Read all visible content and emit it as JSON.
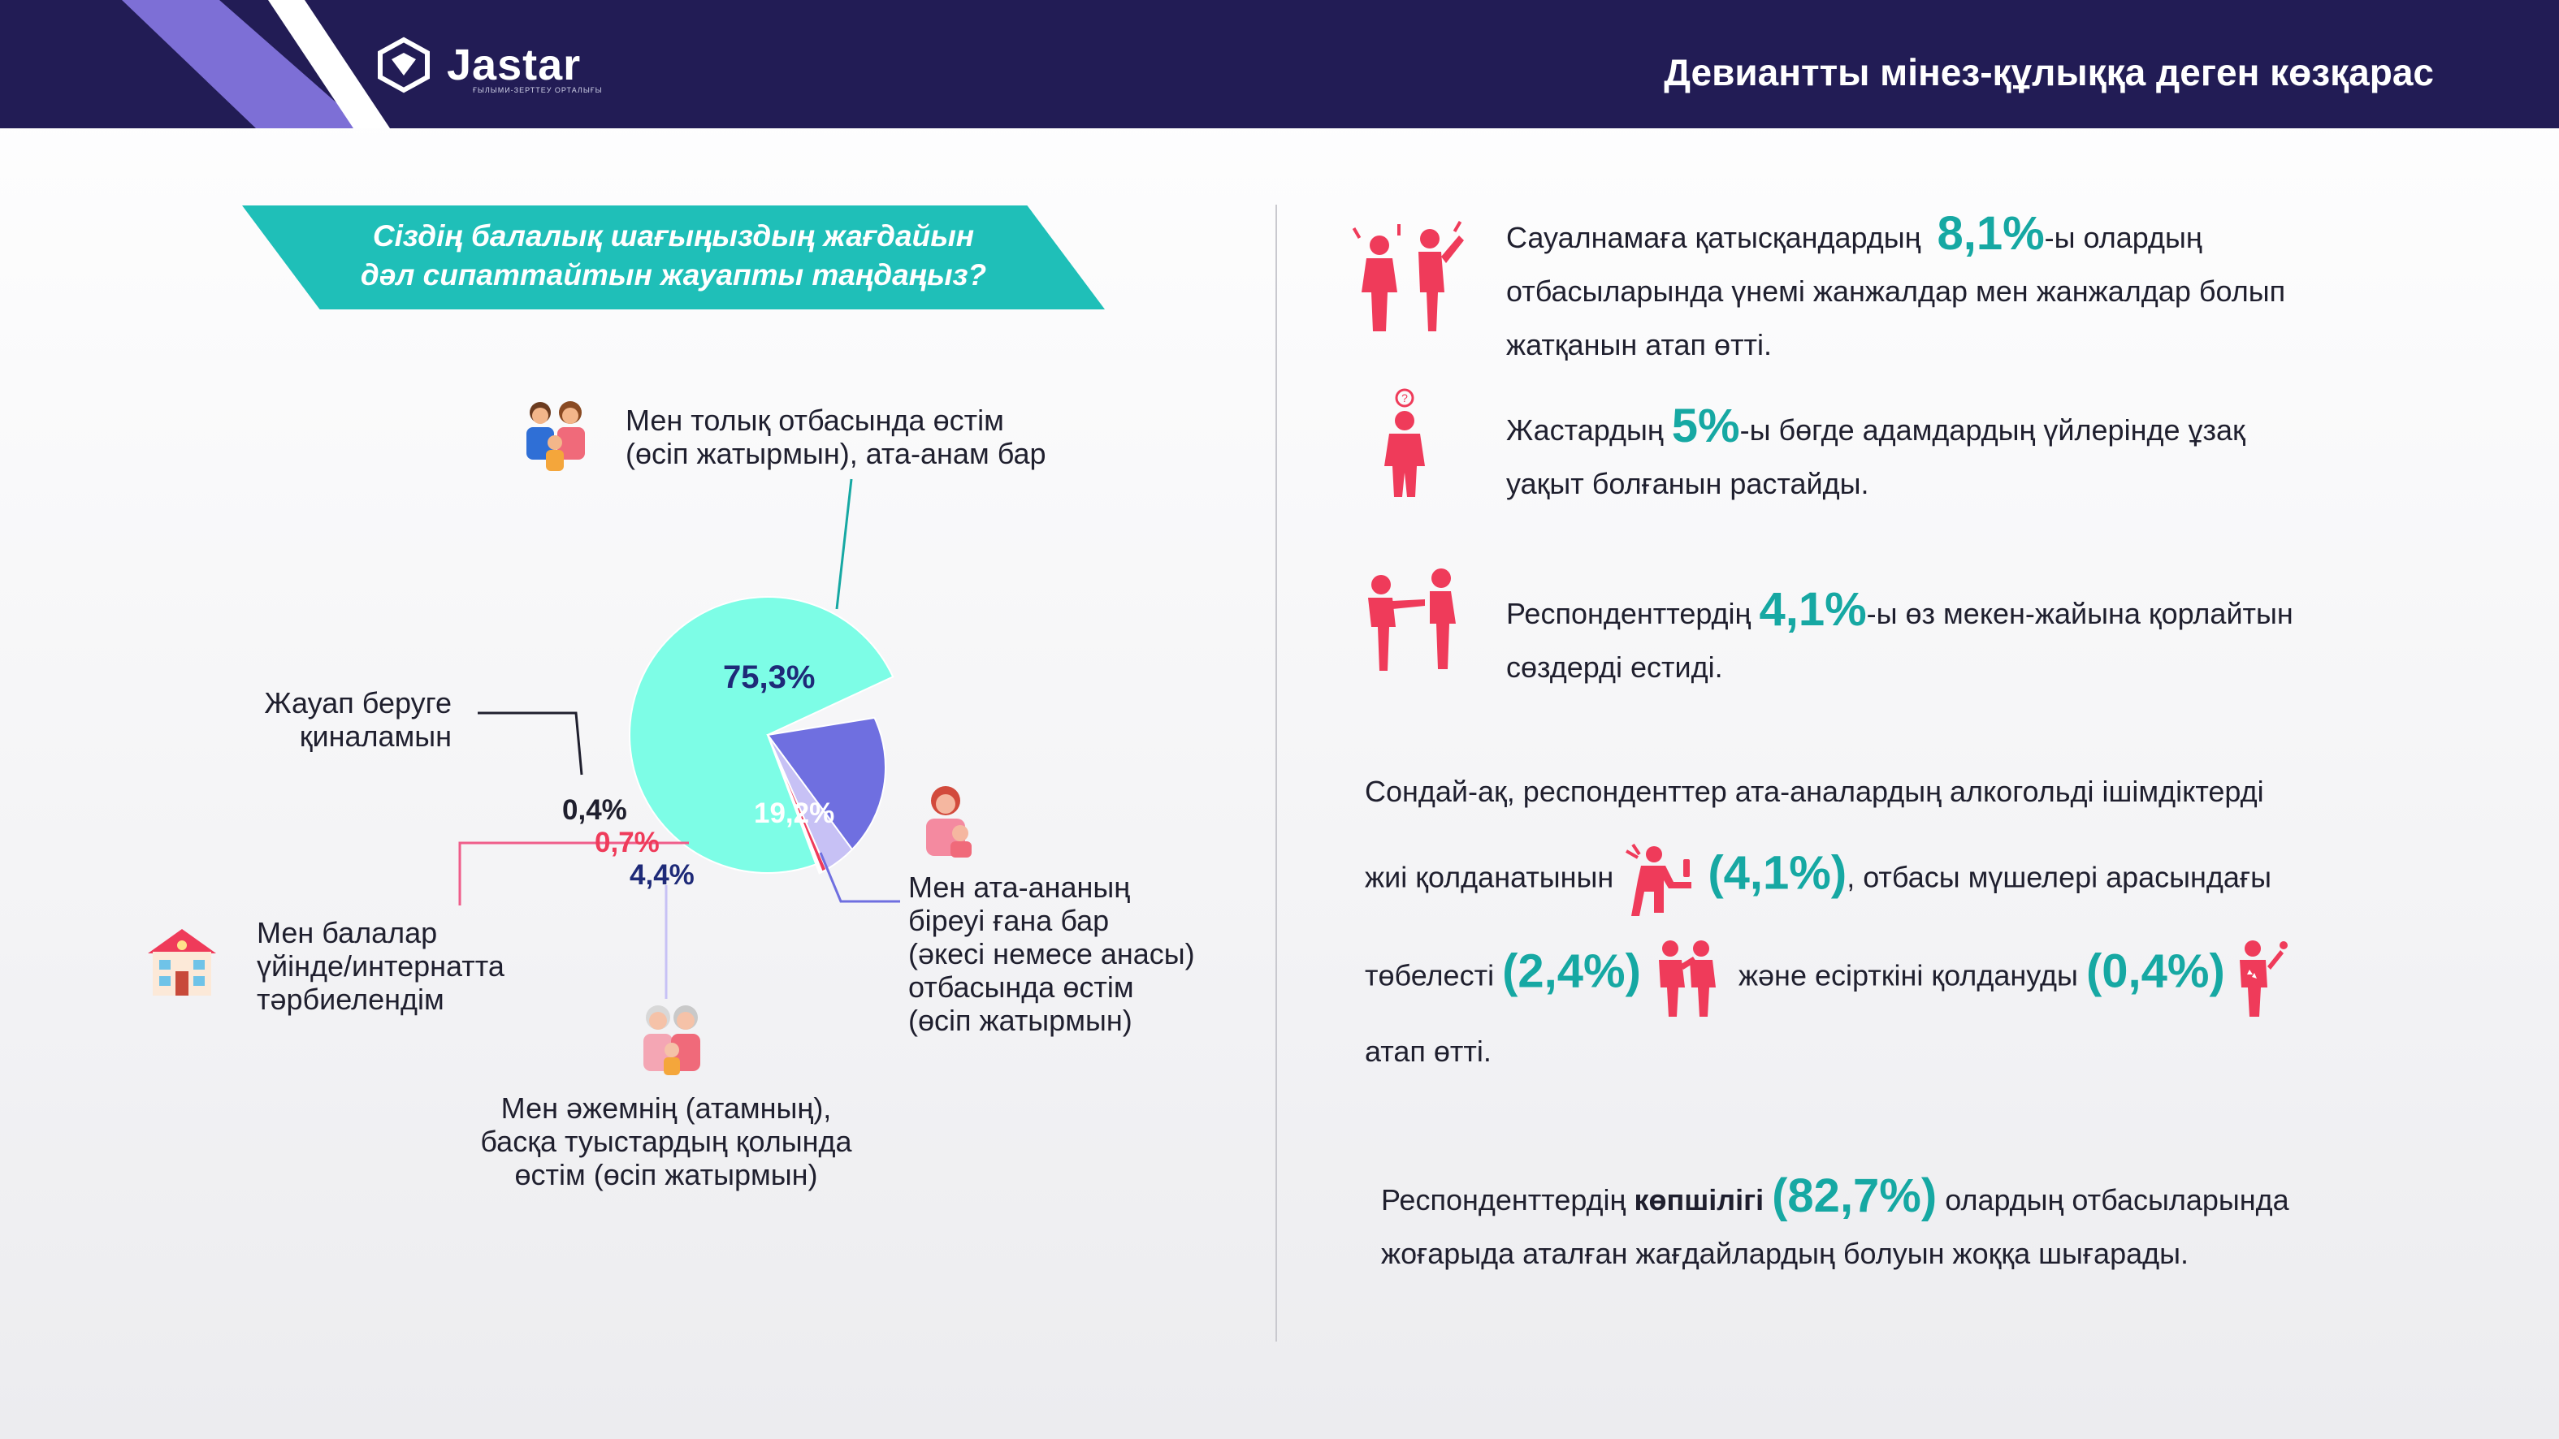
{
  "header": {
    "logo": "Jastar",
    "logo_subtitle": "ҒЫЛЫМИ-ЗЕРТТЕУ ОРТАЛЫҒЫ",
    "title": "Девиантты мінез-құлыққа деген көзқарас"
  },
  "question": {
    "line1": "Сіздің балалық шағыңыздың жағдайын",
    "line2": "дәл сипаттайтын жауапты таңдаңыз?"
  },
  "chart_data": {
    "type": "pie",
    "slices": [
      {
        "label": "Мен толық отбасында өстім (өсіп жатырмын), ата-анам бар",
        "value": 75.3,
        "value_label": "75,3%",
        "color": "#7dfde6"
      },
      {
        "label": "Мен ата-ананың біреуі ғана бар (әкесі немесе анасы) отбасында өстім (өсіп жатырмын)",
        "value": 19.2,
        "value_label": "19,2%",
        "color": "#6f6fe0"
      },
      {
        "label": "Мен әжемнің (атамның), басқа туыстардың қолында өстім (өсіп жатырмын)",
        "value": 4.4,
        "value_label": "4,4%",
        "color": "#c7c1f5"
      },
      {
        "label": "Мен балалар үйінде/интернатта тәрбиелендім",
        "value": 0.7,
        "value_label": "0,7%",
        "color": "#ef3b5a"
      },
      {
        "label": "Жауап беруге қиналамын",
        "value": 0.4,
        "value_label": "0,4%",
        "color": "#ffffff"
      }
    ],
    "labels": {
      "full_family": [
        "Мен толық отбасында өстім",
        "(өсіп жатырмын), ата-анам бар"
      ],
      "single_parent": [
        "Мен ата-ананың",
        "біреуі ғана бар",
        "(әкесі немесе анасы)",
        "отбасында өстім",
        "(өсіп жатырмын)"
      ],
      "relatives": [
        "Мен әжемнің (атамның),",
        "басқа туыстардың қолында",
        "өстім (өсіп жатырмын)"
      ],
      "orphanage": [
        "Мен балалар",
        "үйінде/интернатта",
        "тәрбиелендім"
      ],
      "no_answer": [
        "Жауап беруге",
        "қиналамын"
      ]
    }
  },
  "facts": {
    "f1": {
      "pre": "Сауалнамаға қатысқандардың",
      "num": "8,1%",
      "post": "-ы олардың",
      "line2": "отбасыларында үнемі жанжалдар мен жанжалдар болып",
      "line3": "жатқанын атап өтті."
    },
    "f2": {
      "pre": "Жастардың",
      "num": "5%",
      "post": "-ы бөгде адамдардың үйлерінде ұзақ",
      "line2": "уақыт болғанын растайды."
    },
    "f3": {
      "pre": "Респонденттердің",
      "num": "4,1%",
      "post": "-ы өз мекен-жайына қорлайтын",
      "line2": "сөздерді естиді."
    },
    "f4": {
      "line1": "Сондай-ақ, респонденттер ата-аналардың алкогольді ішімдіктерді",
      "line2_pre": "жиі қолданатынын",
      "num1": "(4,1%)",
      "line2_post": ", отбасы мүшелері арасындағы",
      "line3_pre": "төбелесті",
      "num2": "(2,4%)",
      "line3_mid": "және есірткіні қолдануды",
      "num3": "(0,4%)",
      "line4": "атап өтті."
    },
    "f5": {
      "pre": "Респонденттердің",
      "bold": "көпшілігі",
      "num": "(82,7%)",
      "post": "олардың отбасыларында",
      "line2": "жоғарыда аталған жағдайлардың болуын жоққа шығарады."
    }
  },
  "colors": {
    "header_bg": "#221c55",
    "accent_teal": "#16a8a3",
    "icon_red": "#ef3b5a",
    "question_bg": "#1fbfb8"
  },
  "icons": [
    "logo-icon",
    "family-icon",
    "mother-child-icon",
    "grandparents-icon",
    "orphanage-house-icon",
    "quarrel-icon",
    "person-question-icon",
    "insult-icon",
    "drinking-icon",
    "fight-icon",
    "drug-use-icon"
  ]
}
